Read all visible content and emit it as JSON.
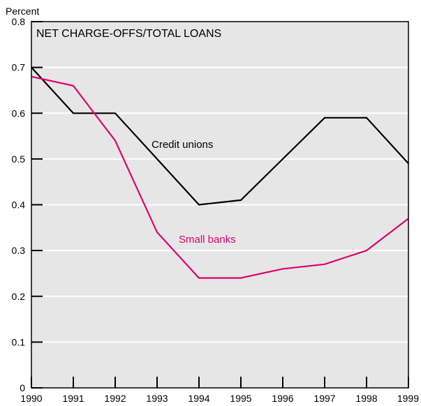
{
  "chart_data": {
    "type": "line",
    "title": "NET CHARGE-OFFS/TOTAL LOANS",
    "ylabel": "Percent",
    "xlabel": "",
    "x": [
      1990,
      1991,
      1992,
      1993,
      1994,
      1995,
      1996,
      1997,
      1998,
      1999
    ],
    "xlim": [
      1990,
      1999
    ],
    "ylim": [
      0,
      0.8
    ],
    "yticks": [
      "0",
      "0.1",
      "0.2",
      "0.3",
      "0.4",
      "0.5",
      "0.6",
      "0.7",
      "0.8"
    ],
    "xticks": [
      "1990",
      "1991",
      "1992",
      "1993",
      "1994",
      "1995",
      "1996",
      "1997",
      "1998",
      "1999"
    ],
    "grid": "horizontal",
    "background": "#e6e6e6",
    "series": [
      {
        "name": "Credit unions",
        "color": "#000000",
        "values": [
          0.7,
          0.6,
          0.6,
          0.5,
          0.4,
          0.41,
          0.5,
          0.59,
          0.59,
          0.49
        ]
      },
      {
        "name": "Small banks",
        "color": "#e0006e",
        "values": [
          0.68,
          0.66,
          0.54,
          0.34,
          0.24,
          0.24,
          0.26,
          0.27,
          0.3,
          0.37
        ]
      }
    ]
  }
}
